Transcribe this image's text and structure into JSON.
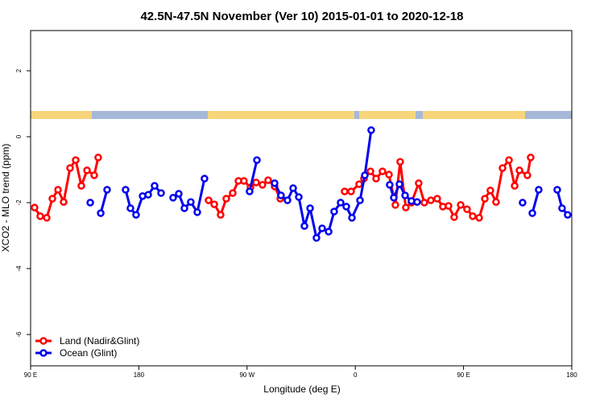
{
  "chart_data": {
    "type": "line",
    "title": "42.5N-47.5N November (Ver 10)   2015-01-01 to 2020-12-18",
    "xlabel": "Longitude (deg E)",
    "ylabel": "XCO2 - MLO trend (ppm)",
    "xlim": [
      90,
      540
    ],
    "ylim": [
      -6.95,
      3.22
    ],
    "xticks": [
      {
        "value": 90,
        "label": "90 E"
      },
      180,
      {
        "value": 270,
        "label": "90 W"
      },
      {
        "value": 360,
        "label": "0"
      },
      {
        "value": 450,
        "label": "90 E"
      },
      {
        "value": 540,
        "label": "180"
      }
    ],
    "yticks": [
      -6,
      -4,
      -2,
      0,
      2
    ],
    "legend": "bottomleft",
    "series": [
      {
        "name": "Land (Nadir&Glint)",
        "color": "#ff0000",
        "x": [
          93.3,
          98.0,
          103.4,
          108.1,
          112.8,
          117.5,
          122.8,
          127.5,
          132.2,
          136.9,
          142.9,
          146.2,
          null,
          238.0,
          242.7,
          248.0,
          252.7,
          258.1,
          262.8,
          267.4,
          272.8,
          277.5,
          282.8,
          287.5,
          292.9,
          297.6,
          null,
          351.1,
          356.5,
          363.2,
          367.2,
          372.6,
          377.3,
          382.6,
          388.0,
          393.3,
          397.3,
          402.0,
          406.7,
          412.7,
          417.4,
          422.8,
          428.1,
          432.8,
          437.5,
          442.2,
          447.6,
          452.9,
          457.6,
          463.0,
          467.7,
          472.3,
          477.0,
          482.4,
          487.8,
          492.5,
          496.5,
          503.1,
          505.8
        ],
        "values": [
          -2.15,
          -2.41,
          -2.46,
          -1.88,
          -1.61,
          -1.98,
          -0.95,
          -0.71,
          -1.49,
          -1.02,
          -1.17,
          -0.63,
          null,
          -1.93,
          -2.05,
          -2.37,
          -1.88,
          -1.71,
          -1.34,
          -1.34,
          -1.54,
          -1.39,
          -1.46,
          -1.32,
          -1.51,
          -1.88,
          null,
          -1.66,
          -1.66,
          -1.44,
          -1.27,
          -1.05,
          -1.27,
          -1.05,
          -1.15,
          -2.07,
          -0.76,
          -2.15,
          -2.0,
          -1.41,
          -2.0,
          -1.93,
          -1.88,
          -2.12,
          -2.1,
          -2.44,
          -2.07,
          -2.2,
          -2.41,
          -2.46,
          -1.88,
          -1.63,
          -1.98,
          -0.95,
          -0.71,
          -1.49,
          -1.02,
          -1.17,
          -0.63
        ]
      },
      {
        "name": "Ocean (Glint)",
        "color": "#0000ee",
        "x": [
          139.6,
          null,
          148.3,
          153.6,
          null,
          169.0,
          173.0,
          177.7,
          183.1,
          187.8,
          193.1,
          198.5,
          null,
          208.5,
          213.2,
          217.9,
          223.2,
          228.6,
          234.6,
          null,
          272.1,
          278.2,
          null,
          292.9,
          298.2,
          303.6,
          308.3,
          313.0,
          317.7,
          322.4,
          327.7,
          332.4,
          337.8,
          342.4,
          347.8,
          352.5,
          357.2,
          363.9,
          367.9,
          373.2,
          null,
          388.6,
          392.0,
          396.7,
          401.4,
          406.7,
          411.4,
          null,
          499.1,
          null,
          507.2,
          512.5,
          null,
          527.9,
          531.9,
          536.6
        ],
        "values": [
          -2.0,
          null,
          -2.32,
          -1.61,
          null,
          -1.61,
          -2.17,
          -2.37,
          -1.8,
          -1.76,
          -1.49,
          -1.71,
          null,
          -1.85,
          -1.73,
          -2.17,
          -1.98,
          -2.29,
          -1.27,
          null,
          -1.66,
          -0.71,
          null,
          -1.41,
          -1.78,
          -1.93,
          -1.56,
          -1.83,
          -2.71,
          -2.17,
          -3.07,
          -2.78,
          -2.88,
          -2.27,
          -2.0,
          -2.12,
          -2.46,
          -1.93,
          -1.17,
          0.2,
          null,
          -1.46,
          -1.85,
          -1.44,
          -1.78,
          -1.95,
          -1.98,
          null,
          -2.0,
          null,
          -2.32,
          -1.61,
          null,
          -1.61,
          -2.17,
          -2.37
        ]
      }
    ]
  }
}
